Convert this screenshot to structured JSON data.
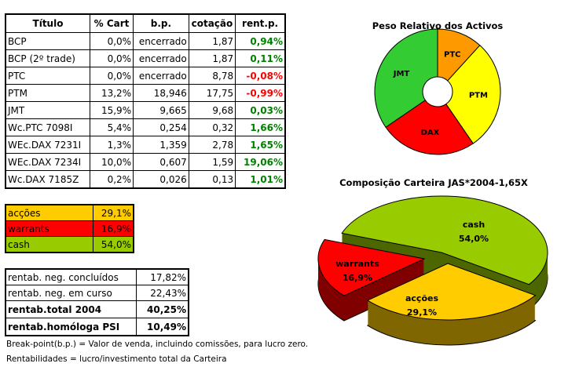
{
  "main_table": {
    "headers": [
      "Título",
      "% Cart",
      "b.p.",
      "cotação",
      "rent.p."
    ],
    "rows": [
      [
        "BCP",
        "0,0%",
        "encerrado",
        "1,87",
        "0,94%"
      ],
      [
        "BCP (2º trade)",
        "0,0%",
        "encerrado",
        "1,87",
        "0,11%"
      ],
      [
        "PTC",
        "0,0%",
        "encerrado",
        "8,78",
        "-0,08%"
      ],
      [
        "PTM",
        "13,2%",
        "18,946",
        "17,75",
        "-0,99%"
      ],
      [
        "JMT",
        "15,9%",
        "9,665",
        "9,68",
        "0,03%"
      ],
      [
        "Wc.PTC 7098I",
        "5,4%",
        "0,254",
        "0,32",
        "1,66%"
      ],
      [
        "WEc.DAX 7231I",
        "1,3%",
        "1,359",
        "2,78",
        "1,65%"
      ],
      [
        "WEc.DAX 7234I",
        "10,0%",
        "0,607",
        "1,59",
        "19,06%"
      ],
      [
        "Wc.DAX 7185Z",
        "0,2%",
        "0,026",
        "0,13",
        "1,01%"
      ]
    ],
    "colors": {
      "positive": "#008000",
      "negative": "#ff0000"
    }
  },
  "legend_table": {
    "rows": [
      {
        "label": "acções",
        "value": "29,1%",
        "color": "#ffcc00"
      },
      {
        "label": "warrants",
        "value": "16,9%",
        "color": "#ff0000"
      },
      {
        "label": "cash",
        "value": "54,0%",
        "color": "#99cc00"
      }
    ]
  },
  "stats_table": {
    "rows": [
      {
        "label": "rentab. neg. concluídos",
        "value": "17,82%"
      },
      {
        "label": "rentab. neg. em curso",
        "value": "22,43%"
      },
      {
        "label": "rentab.total 2004",
        "value": "40,25%"
      },
      {
        "label": "rentab.homóloga PSI",
        "value": "10,49%"
      }
    ]
  },
  "notes": [
    "Break-point(b.p.) = Valor de venda, incluindo comissões, para lucro zero.",
    "Rentabilidades = lucro/investimento total da Carteira"
  ],
  "chart_data": [
    {
      "type": "pie",
      "variant": "donut",
      "title": "Peso Relativo dos Activos",
      "categories": [
        "PTC",
        "PTM",
        "DAX",
        "JMT"
      ],
      "values": [
        5.4,
        13.2,
        11.5,
        15.9
      ],
      "colors": [
        "#ff9900",
        "#ffff00",
        "#ff0000",
        "#33cc33"
      ]
    },
    {
      "type": "pie",
      "variant": "3d-exploded",
      "title": "Composição Carteira JAS*2004-1,65X",
      "categories": [
        "cash",
        "acções",
        "warrants"
      ],
      "values": [
        54.0,
        29.1,
        16.9
      ],
      "labels": [
        "54,0%",
        "29,1%",
        "16,9%"
      ],
      "colors": [
        "#99cc00",
        "#ffcc00",
        "#ff0000"
      ],
      "side_colors": [
        "#4d6600",
        "#806600",
        "#800000"
      ]
    }
  ]
}
